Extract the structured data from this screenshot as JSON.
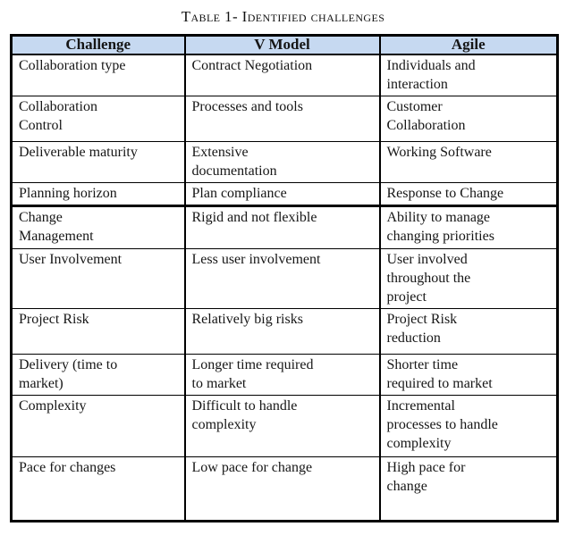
{
  "caption": "Table 1- Identified challenges",
  "table": {
    "header_bg": "#c6d9f1",
    "headers": [
      "Challenge",
      "V Model",
      "Agile"
    ],
    "rows": [
      [
        "Collaboration type",
        "Contract Negotiation",
        "Individuals and\ninteraction"
      ],
      [
        "Collaboration\nControl",
        "Processes and tools",
        "Customer\nCollaboration"
      ],
      [
        "Deliverable maturity",
        "Extensive\ndocumentation",
        "Working Software"
      ],
      [
        "Planning horizon",
        "Plan compliance",
        "Response to Change"
      ],
      [
        "Change\nManagement",
        "Rigid and not flexible",
        "Ability to manage\nchanging priorities"
      ],
      [
        "User Involvement",
        "Less user involvement",
        "User involved\nthroughout the\nproject"
      ],
      [
        "Project Risk",
        "Relatively big risks",
        "Project Risk\nreduction"
      ],
      [
        "Delivery (time to\nmarket)",
        "Longer time required\nto market",
        "Shorter time\nrequired to market"
      ],
      [
        "Complexity",
        "Difficult to handle\ncomplexity",
        "Incremental\nprocesses to handle\ncomplexity"
      ],
      [
        "Pace for changes",
        "Low pace for change",
        "High pace for\nchange"
      ]
    ]
  }
}
